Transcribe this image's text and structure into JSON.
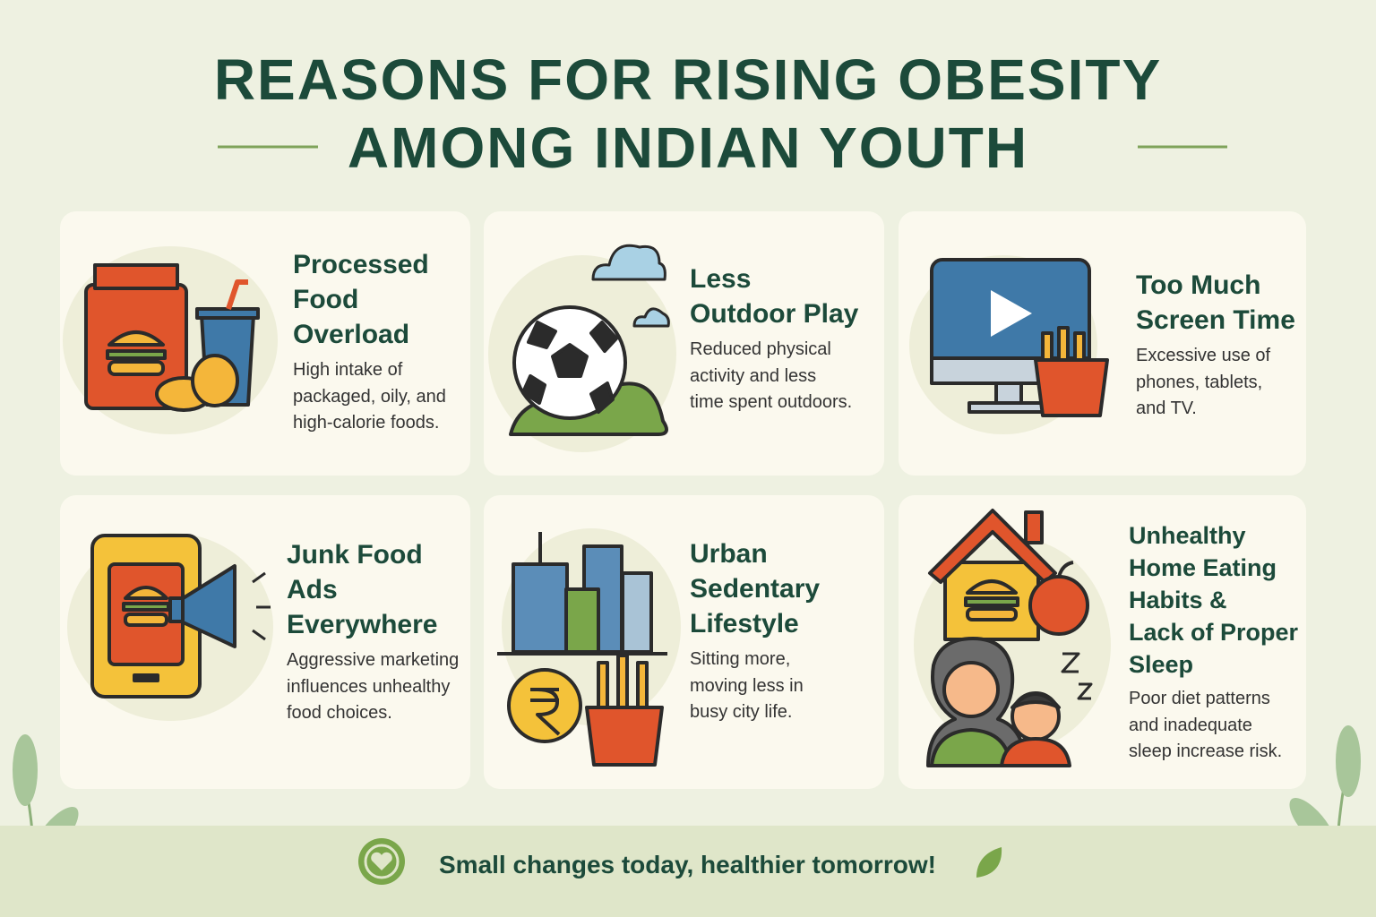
{
  "header": {
    "title_lines": [
      "REASONS FOR RISING OBESITY",
      "AMONG INDIAN YOUTH"
    ]
  },
  "cards": [
    {
      "title_lines": [
        "Processed",
        "Food",
        "Overload"
      ],
      "description_lines": [
        "High intake of",
        "packaged, oily, and",
        "high-calorie foods."
      ]
    },
    {
      "title_lines": [
        "Less",
        "Outdoor Play"
      ],
      "description_lines": [
        "Reduced physical",
        "activity and less",
        "time spent outdoors."
      ]
    },
    {
      "title_lines": [
        "Too Much",
        "Screen Time"
      ],
      "description_lines": [
        "Excessive use of",
        "phones, tablets,",
        "and TV."
      ]
    },
    {
      "title_lines": [
        "Junk Food",
        "Ads",
        "Everywhere"
      ],
      "description_lines": [
        "Aggressive marketing",
        "influences unhealthy",
        "food choices."
      ]
    },
    {
      "title_lines": [
        "Urban",
        "Sedentary",
        "Lifestyle"
      ],
      "description_lines": [
        "Sitting more,",
        "moving less in",
        "busy city life."
      ]
    },
    {
      "title_lines": [
        "Unhealthy",
        "Home Eating",
        "Habits &",
        "Lack of Proper",
        "Sleep"
      ],
      "description_lines": [
        "Poor diet patterns",
        "and inadequate",
        "sleep increase risk."
      ]
    }
  ],
  "footer": {
    "text": "Small changes today, healthier tomorrow!"
  }
}
